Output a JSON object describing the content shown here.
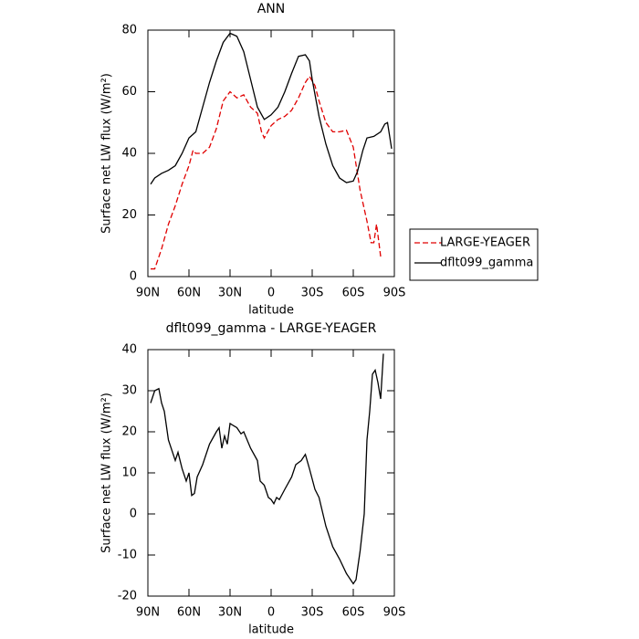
{
  "chart_data": [
    {
      "type": "line",
      "title": "ANN",
      "xlabel": "latitude",
      "ylabel": "Surface net LW flux (W/m²)",
      "xlim": [
        90,
        -90
      ],
      "xticks": [
        {
          "value": 90,
          "label": "90N"
        },
        {
          "value": 60,
          "label": "60N"
        },
        {
          "value": 30,
          "label": "30N"
        },
        0,
        {
          "value": -30,
          "label": "30S"
        },
        {
          "value": -60,
          "label": "60S"
        },
        {
          "value": -90,
          "label": "90S"
        }
      ],
      "ylim": [
        0,
        80
      ],
      "yticks": [
        0,
        20,
        40,
        60,
        80
      ],
      "legend": "right",
      "series": [
        {
          "name": "LARGE-YEAGER",
          "color": "#e00000",
          "dash": true,
          "x": [
            88,
            85,
            80,
            75,
            70,
            65,
            60,
            57,
            55,
            50,
            45,
            40,
            35,
            30,
            25,
            20,
            15,
            10,
            7,
            5,
            0,
            -5,
            -10,
            -15,
            -20,
            -25,
            -28,
            -32,
            -35,
            -40,
            -45,
            -50,
            -55,
            -60,
            -65,
            -70,
            -73,
            -75,
            -77,
            -80
          ],
          "values": [
            2.5,
            2.5,
            9,
            17,
            23,
            30,
            36,
            41,
            40,
            40,
            42,
            48,
            57,
            60,
            58,
            59,
            55,
            53,
            47,
            45,
            49,
            51,
            52,
            54,
            58,
            63,
            65,
            62,
            57,
            50,
            47,
            47,
            47.5,
            42,
            28,
            18,
            11,
            11,
            17,
            6.5
          ]
        },
        {
          "name": "dflt099_gamma",
          "color": "#000000",
          "dash": false,
          "x": [
            88,
            85,
            80,
            75,
            70,
            65,
            60,
            55,
            50,
            45,
            40,
            35,
            30,
            25,
            20,
            15,
            10,
            5,
            0,
            -5,
            -10,
            -15,
            -20,
            -25,
            -28,
            -30,
            -35,
            -40,
            -45,
            -50,
            -55,
            -60,
            -63,
            -67,
            -70,
            -75,
            -80,
            -83,
            -85,
            -88
          ],
          "values": [
            30,
            32,
            33.5,
            34.5,
            36,
            40,
            45,
            47,
            55,
            63,
            70,
            76,
            79,
            78,
            73,
            64,
            55,
            51,
            52.5,
            55,
            60,
            66,
            71.5,
            72,
            70,
            64,
            52,
            43,
            36,
            32,
            30.5,
            31,
            34,
            41,
            45,
            45.5,
            47,
            49.5,
            50,
            41.5
          ]
        }
      ]
    },
    {
      "type": "line",
      "title": "dflt099_gamma - LARGE-YEAGER",
      "xlabel": "latitude",
      "ylabel": "Surface net LW flux (W/m²)",
      "xlim": [
        90,
        -90
      ],
      "xticks": [
        {
          "value": 90,
          "label": "90N"
        },
        {
          "value": 60,
          "label": "60N"
        },
        {
          "value": 30,
          "label": "30N"
        },
        0,
        {
          "value": -30,
          "label": "30S"
        },
        {
          "value": -60,
          "label": "60S"
        },
        {
          "value": -90,
          "label": "90S"
        }
      ],
      "ylim": [
        -20,
        40
      ],
      "yticks": [
        -20,
        -10,
        0,
        10,
        20,
        30,
        40
      ],
      "series": [
        {
          "color": "#000000",
          "dash": false,
          "x": [
            88,
            85,
            82,
            80,
            78,
            75,
            70,
            68,
            65,
            62,
            60,
            58,
            56,
            54,
            50,
            45,
            40,
            38,
            36,
            34,
            32,
            30,
            25,
            22,
            20,
            15,
            10,
            8,
            5,
            2,
            0,
            -2,
            -4,
            -6,
            -10,
            -15,
            -18,
            -22,
            -25,
            -28,
            -32,
            -35,
            -40,
            -45,
            -50,
            -55,
            -58,
            -60,
            -62,
            -65,
            -68,
            -70,
            -72,
            -74,
            -76,
            -78,
            -80,
            -82
          ],
          "values": [
            27,
            30,
            30.5,
            27,
            25,
            18,
            13,
            15,
            11,
            8,
            10,
            4.5,
            5,
            9,
            12,
            17,
            20,
            21,
            16,
            19,
            17,
            22,
            21,
            19.5,
            20,
            16,
            13,
            8,
            7,
            4,
            3.5,
            2.5,
            4,
            3.5,
            6,
            9,
            12,
            13,
            14.5,
            11,
            6,
            4,
            -3,
            -8,
            -11,
            -14.5,
            -16,
            -17,
            -16,
            -9,
            0,
            18,
            25,
            34,
            35,
            32,
            28,
            39
          ]
        }
      ]
    }
  ]
}
